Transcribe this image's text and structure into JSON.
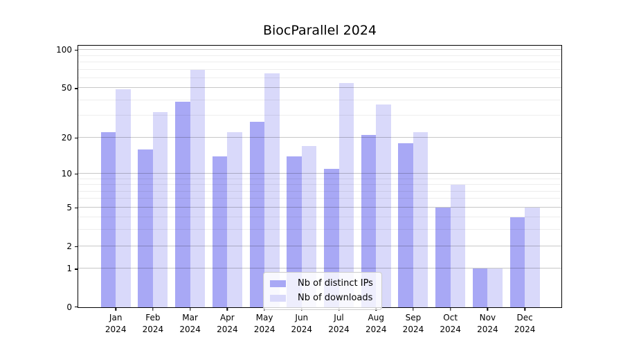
{
  "chart_data": {
    "type": "bar",
    "title": "BiocParallel 2024",
    "categories": [
      "Jan 2024",
      "Feb 2024",
      "Mar 2024",
      "Apr 2024",
      "May 2024",
      "Jun 2024",
      "Jul 2024",
      "Aug 2024",
      "Sep 2024",
      "Oct 2024",
      "Nov 2024",
      "Dec 2024"
    ],
    "series": [
      {
        "name": "Nb of distinct IPs",
        "color": "#a8a8f5",
        "values": [
          22,
          16,
          39,
          14,
          27,
          14,
          11,
          21,
          18,
          5,
          1,
          4
        ]
      },
      {
        "name": "Nb of downloads",
        "color": "#d9d9fa",
        "values": [
          49,
          32,
          70,
          22,
          65,
          17,
          55,
          37,
          22,
          8,
          1,
          5
        ]
      }
    ],
    "xlabel": "",
    "ylabel": "",
    "yscale": "log1p",
    "ylim": [
      0,
      108
    ],
    "yticks": [
      0,
      1,
      2,
      5,
      10,
      20,
      50,
      100
    ],
    "minor_yticks": [
      3,
      4,
      6,
      7,
      8,
      9,
      30,
      40,
      60,
      70,
      80,
      90
    ],
    "grid": true,
    "legend_position": "lower center"
  }
}
